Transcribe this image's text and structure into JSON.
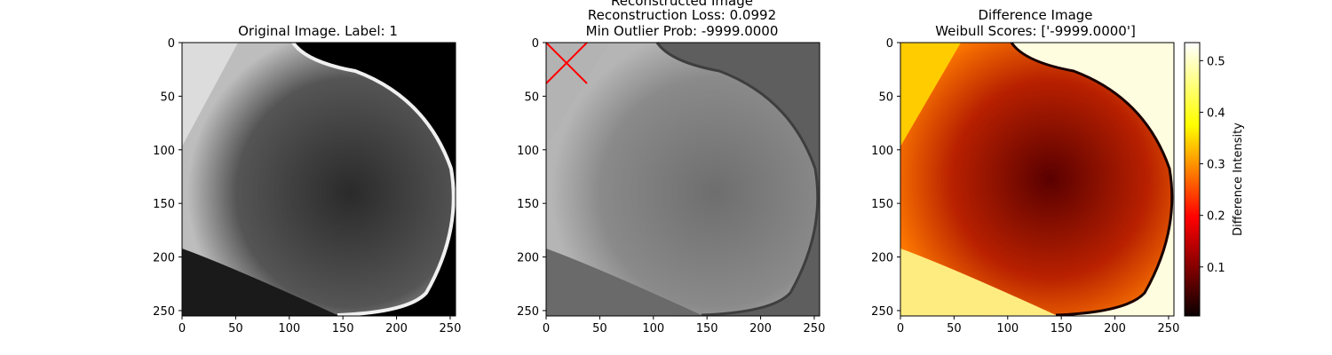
{
  "chart_data": [
    {
      "type": "image",
      "title": "Original Image. Label: 1",
      "xlim": [
        0,
        255
      ],
      "ylim": [
        255,
        0
      ],
      "xticks": [
        0,
        50,
        100,
        150,
        200,
        250
      ],
      "yticks": [
        0,
        50,
        100,
        150,
        200,
        250
      ],
      "colormap": "gray",
      "background": "#000000",
      "tissue_color": "#6b6b6b"
    },
    {
      "type": "image",
      "title_lines": [
        "Reconstructed Image",
        "Reconstruction Loss: 0.0992",
        "Min Outlier Prob: -9999.0000"
      ],
      "xlim": [
        0,
        255
      ],
      "ylim": [
        255,
        0
      ],
      "xticks": [
        0,
        50,
        100,
        150,
        200,
        250
      ],
      "yticks": [
        0,
        50,
        100,
        150,
        200,
        250
      ],
      "colormap": "gray",
      "background": "#5e5e5e",
      "tissue_color": "#8a8a8a",
      "marker": {
        "shape": "x",
        "color": "#ff0000",
        "x": [
          0,
          38
        ],
        "y": [
          0,
          38
        ]
      }
    },
    {
      "type": "heatmap",
      "title_lines": [
        "Difference Image",
        "Weibull Scores: ['-9999.0000']"
      ],
      "xlim": [
        0,
        255
      ],
      "ylim": [
        255,
        0
      ],
      "xticks": [
        0,
        50,
        100,
        150,
        200,
        250
      ],
      "yticks": [
        0,
        50,
        100,
        150,
        200,
        250
      ],
      "colormap": "hot",
      "background": "#fffde0",
      "tissue_color": "#b01a00",
      "colorbar": {
        "label": "Difference Intensity",
        "range": [
          0.005,
          0.535
        ],
        "ticks": [
          0.1,
          0.2,
          0.3,
          0.4,
          0.5
        ]
      }
    }
  ]
}
